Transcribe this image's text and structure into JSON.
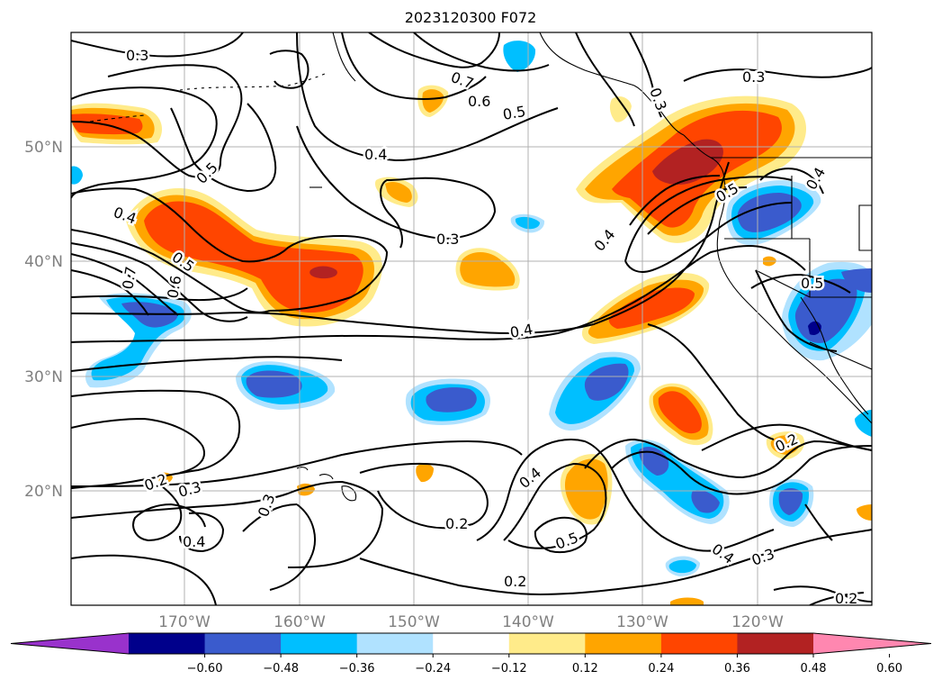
{
  "title": "2023120300 F072",
  "lat_labels": [
    "50°N",
    "40°N",
    "30°N",
    "20°N"
  ],
  "lon_labels": [
    "170°W",
    "160°W",
    "150°W",
    "140°W",
    "130°W",
    "120°W"
  ],
  "colorbar": {
    "ticks": [
      "−0.60",
      "−0.48",
      "−0.36",
      "−0.24",
      "−0.12",
      "0.12",
      "0.24",
      "0.36",
      "0.48",
      "0.60"
    ],
    "colors": [
      "#9932cc",
      "#00008b",
      "#3a5bcd",
      "#00bfff",
      "#b0e2ff",
      "#ffffff",
      "#ffeb8a",
      "#ffa500",
      "#ff4500",
      "#b22222",
      "#ff87b0"
    ]
  },
  "shading_colors": {
    "light_yellow": "#ffeb8a",
    "orange": "#ffa500",
    "orange_red": "#ff4500",
    "dark_red": "#b22222",
    "light_blue": "#b0e2ff",
    "sky_blue": "#00bfff",
    "royal_blue": "#3a5bcd",
    "navy": "#00008b"
  },
  "contour_labels": [
    "0.3",
    "0.7",
    "0.6",
    "0.5",
    "0.3",
    "0.3",
    "0.5",
    "0.4",
    "0.4",
    "0.5",
    "0.7",
    "0.6",
    "0.3",
    "0.4",
    "0.5",
    "0.4",
    "0.5",
    "0.4",
    "0.2",
    "0.3",
    "0.3",
    "0.4",
    "0.2",
    "0.4",
    "0.5",
    "0.2",
    "0.4",
    "0.3",
    "0.2",
    "0.2"
  ]
}
